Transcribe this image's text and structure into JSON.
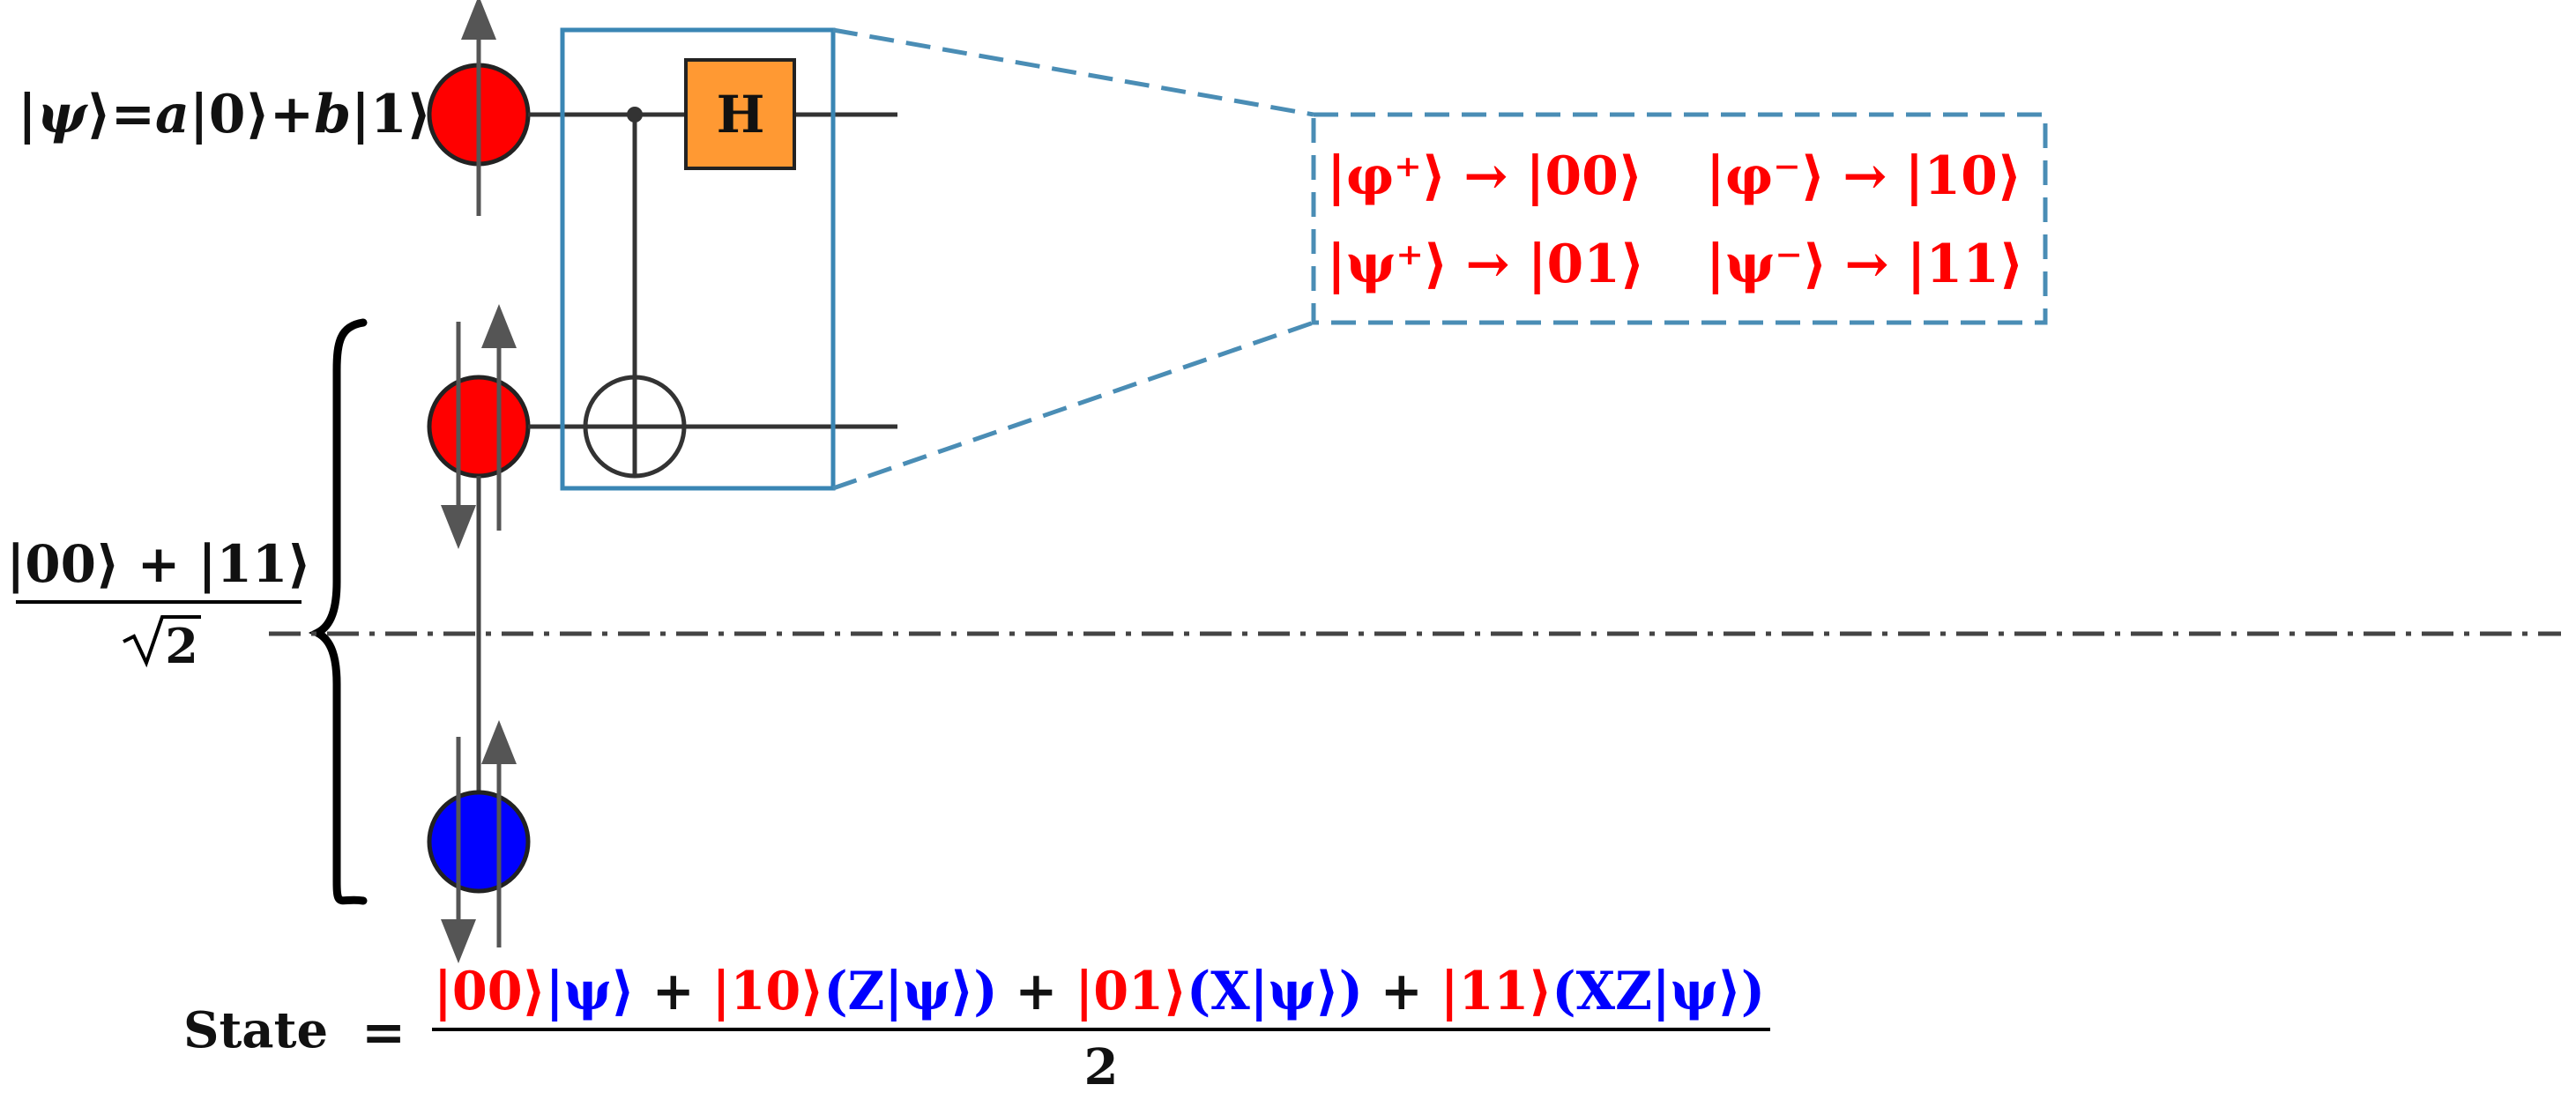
{
  "input_state": {
    "ket_open": "|",
    "psi": "ψ",
    "ket_close": "⟩",
    "equals": "=",
    "a": "a",
    "ket0": "|0⟩",
    "plus": "+",
    "b": "b",
    "ket1": "|1⟩"
  },
  "bell_state": {
    "numerator": "|00⟩ + |11⟩",
    "sqrt_symbol": "√",
    "denominator": "2"
  },
  "gate_label": "H",
  "bell_map": [
    {
      "from": "|φ⁺⟩",
      "arrow": "→",
      "to": "|00⟩"
    },
    {
      "from": "|φ⁻⟩",
      "arrow": "→",
      "to": "|10⟩"
    },
    {
      "from": "|ψ⁺⟩",
      "arrow": "→",
      "to": "|01⟩"
    },
    {
      "from": "|ψ⁻⟩",
      "arrow": "→",
      "to": "|11⟩"
    }
  ],
  "state_equation": {
    "label": "State",
    "equals": "=",
    "terms": [
      {
        "red": "|00⟩",
        "blue": "|ψ⟩"
      },
      {
        "red": "|10⟩",
        "blue": "(Z|ψ⟩)"
      },
      {
        "red": "|01⟩",
        "blue": "(X|ψ⟩)"
      },
      {
        "red": "|11⟩",
        "blue": "(XZ|ψ⟩)"
      }
    ],
    "plus": "+",
    "denominator": "2"
  },
  "colors": {
    "red": "#ff0000",
    "blue": "#0000ff",
    "gate_fill": "#ff9933",
    "box_stroke": "#3a86b4",
    "dashed_stroke": "#4a8db5",
    "wire": "#333333",
    "arrow": "#555555"
  }
}
